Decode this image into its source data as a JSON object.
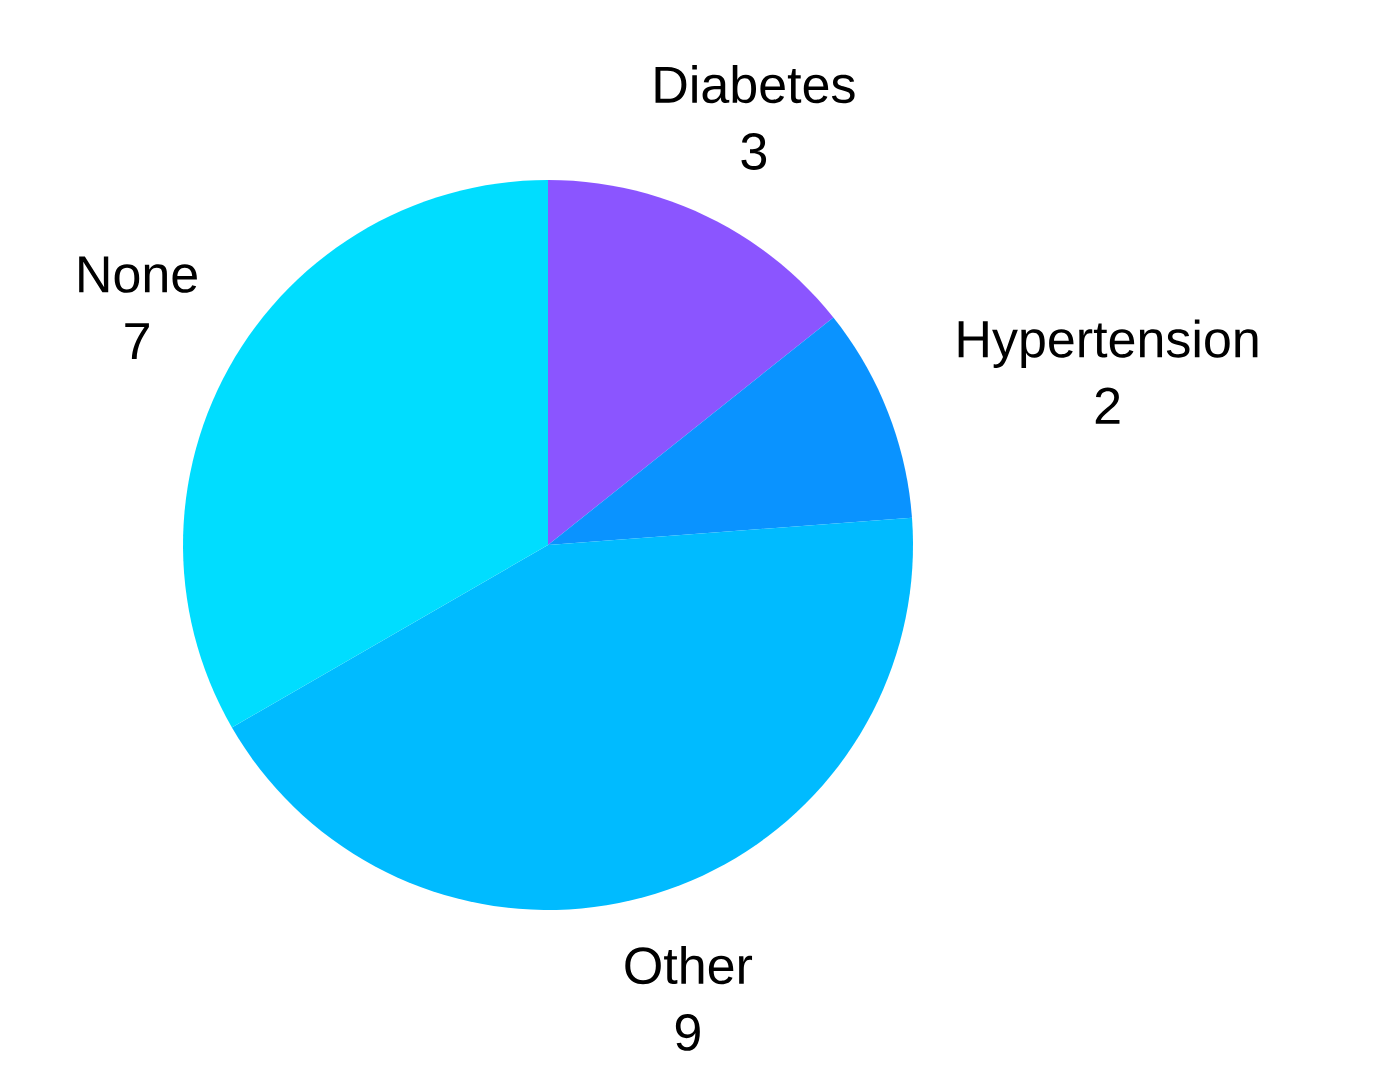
{
  "chart_data": {
    "type": "pie",
    "categories": [
      "Diabetes",
      "Hypertension",
      "Other",
      "None"
    ],
    "values": [
      3,
      2,
      9,
      7
    ],
    "colors": [
      "#8b55ff",
      "#0a93ff",
      "#00bbff",
      "#00ddff"
    ],
    "value_labels": [
      "3",
      "2",
      "9",
      "7"
    ]
  }
}
